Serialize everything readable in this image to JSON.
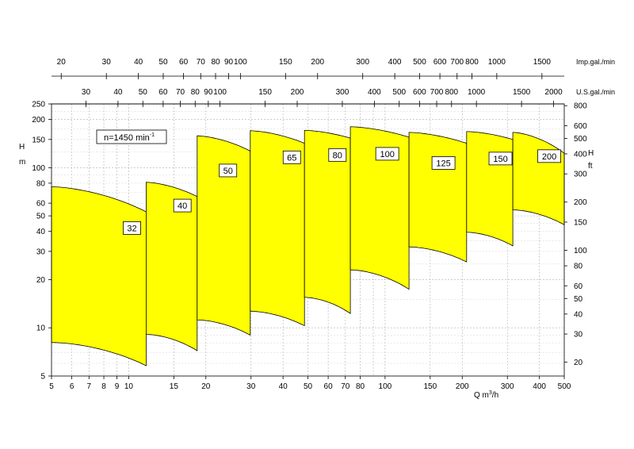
{
  "chart_data": {
    "type": "area",
    "speed_label": "n=1450 min",
    "speed_exponent": "-1",
    "x_axis": {
      "label": "Q  m",
      "label_exp": "3",
      "label_suffix": "/h",
      "scale": "log",
      "range": [
        5,
        500
      ],
      "ticks": [
        5,
        6,
        7,
        8,
        9,
        10,
        15,
        20,
        30,
        40,
        50,
        60,
        70,
        80,
        100,
        150,
        200,
        300,
        400,
        500
      ],
      "tick_labels": [
        "5",
        "6",
        "7",
        "8",
        "9",
        "10",
        "15",
        "20",
        "30",
        "40",
        "50",
        "60",
        "70",
        "80",
        "100",
        "150",
        "200",
        "300",
        "400",
        "500"
      ]
    },
    "y_axis_left": {
      "label_top": "H",
      "label_bottom": "m",
      "scale": "log",
      "range": [
        5,
        250
      ],
      "ticks": [
        5,
        10,
        20,
        30,
        40,
        50,
        60,
        80,
        100,
        150,
        200,
        250
      ],
      "tick_labels": [
        "5",
        "10",
        "20",
        "30",
        "40",
        "50",
        "60",
        "80",
        "100",
        "150",
        "200",
        "250"
      ]
    },
    "y_axis_right": {
      "label_top": "H",
      "label_bottom": "ft",
      "scale": "log",
      "ticks": [
        20,
        30,
        40,
        50,
        60,
        80,
        100,
        150,
        200,
        300,
        400,
        500,
        600,
        800
      ],
      "tick_labels": [
        "20",
        "30",
        "40",
        "50",
        "60",
        "80",
        "100",
        "150",
        "200",
        "300",
        "400",
        "500",
        "600",
        "800"
      ]
    },
    "top_axis_imp": {
      "unit": "Imp.gal./min",
      "ticks": [
        20,
        30,
        40,
        50,
        60,
        70,
        80,
        90,
        100,
        150,
        200,
        300,
        400,
        500,
        600,
        700,
        800,
        1000,
        1500
      ],
      "tick_labels": [
        "20",
        "30",
        "40",
        "50",
        "60",
        "70",
        "80",
        "90",
        "100",
        "150",
        "200",
        "300",
        "400",
        "500",
        "600",
        "700",
        "800",
        "1000",
        "1500"
      ]
    },
    "top_axis_us": {
      "unit": "U.S.gal./min",
      "ticks": [
        30,
        40,
        50,
        60,
        70,
        80,
        90,
        100,
        150,
        200,
        300,
        400,
        500,
        600,
        700,
        800,
        1000,
        1500,
        2000
      ],
      "tick_labels": [
        "30",
        "40",
        "50",
        "60",
        "70",
        "80",
        "90",
        "100",
        "150",
        "200",
        "300",
        "400",
        "500",
        "600",
        "700",
        "800",
        "1000",
        "1500",
        "2000"
      ]
    },
    "grid": true,
    "series": [
      {
        "name": "32",
        "q_min": 5,
        "q_max": 11.7,
        "h_top": [
          76,
          53
        ],
        "h_bottom": [
          8.1,
          5.8
        ],
        "label_q": 10.3,
        "label_h": 42
      },
      {
        "name": "40",
        "q_min": 11.7,
        "q_max": 18.5,
        "h_top": [
          81,
          66
        ],
        "h_bottom": [
          9.1,
          7.2
        ],
        "label_q": 16.2,
        "label_h": 58
      },
      {
        "name": "50",
        "q_min": 18.5,
        "q_max": 29.8,
        "h_top": [
          158,
          127
        ],
        "h_bottom": [
          11.2,
          9.0
        ],
        "label_q": 24.4,
        "label_h": 96
      },
      {
        "name": "65",
        "q_min": 29.8,
        "q_max": 48.5,
        "h_top": [
          170,
          142
        ],
        "h_bottom": [
          12.7,
          10.3
        ],
        "label_q": 43.3,
        "label_h": 116
      },
      {
        "name": "80",
        "q_min": 48.5,
        "q_max": 73.2,
        "h_top": [
          171,
          153
        ],
        "h_bottom": [
          15.5,
          12.3
        ],
        "label_q": 65.2,
        "label_h": 120
      },
      {
        "name": "100",
        "q_min": 73.2,
        "q_max": 124,
        "h_top": [
          180,
          155
        ],
        "h_bottom": [
          23,
          17.4
        ],
        "label_q": 102,
        "label_h": 122
      },
      {
        "name": "125",
        "q_min": 124,
        "q_max": 208,
        "h_top": [
          166,
          142
        ],
        "h_bottom": [
          32,
          25.8
        ],
        "label_q": 169,
        "label_h": 107
      },
      {
        "name": "150",
        "q_min": 208,
        "q_max": 315,
        "h_top": [
          168,
          150
        ],
        "h_bottom": [
          39.5,
          32.5
        ],
        "label_q": 282,
        "label_h": 114
      },
      {
        "name": "200",
        "q_min": 315,
        "q_max": 500,
        "h_top": [
          166,
          123
        ],
        "h_bottom": [
          54.5,
          44
        ],
        "label_q": 437,
        "label_h": 118
      }
    ]
  }
}
